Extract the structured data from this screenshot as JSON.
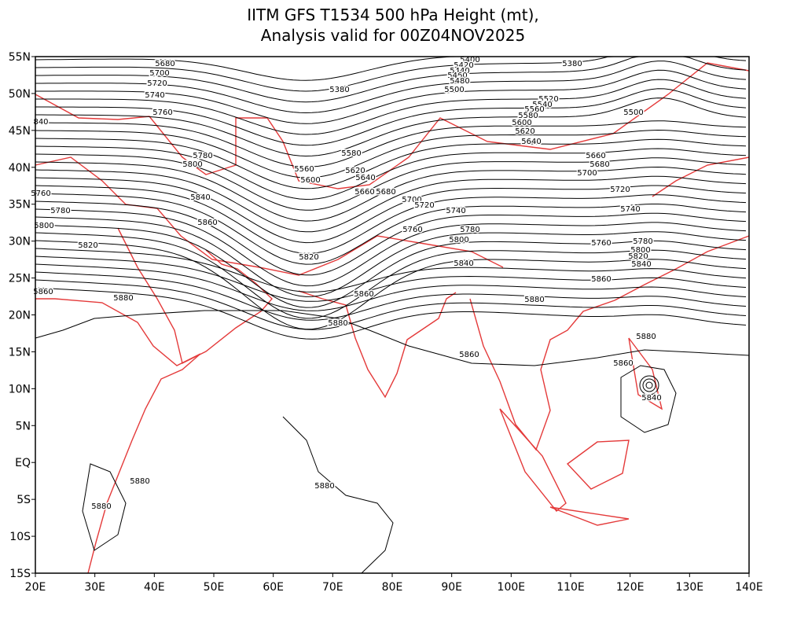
{
  "title": [
    "IITM GFS T1534 500 hPa Height (mt),",
    "Analysis valid for 00Z04NOV2025"
  ],
  "longitude_labels": [
    "20E",
    "30E",
    "40E",
    "50E",
    "60E",
    "70E",
    "80E",
    "90E",
    "100E",
    "110E",
    "120E",
    "130E",
    "140E"
  ],
  "latitude_labels": [
    "55N",
    "50N",
    "45N",
    "40N",
    "35N",
    "30N",
    "25N",
    "20N",
    "15N",
    "10N",
    "5N",
    "EQ",
    "5S",
    "10S",
    "15S"
  ],
  "contour_labels": [
    "5680",
    "5700",
    "5720",
    "5740",
    "5760",
    "840",
    "5780",
    "5800",
    "5840",
    "5860",
    "5760",
    "5780",
    "5800",
    "5820",
    "5860",
    "5880",
    "5880",
    "5860",
    "5820",
    "5380",
    "5580",
    "5560",
    "5600",
    "5620",
    "5640",
    "5660",
    "5680",
    "5700",
    "5720",
    "5740",
    "5760",
    "5780",
    "5800",
    "5840",
    "5400",
    "5420",
    "5440",
    "5460",
    "5480",
    "5500",
    "5380",
    "5520",
    "5540",
    "5560",
    "5580",
    "5600",
    "5620",
    "5640",
    "5500",
    "5660",
    "5680",
    "5700",
    "5720",
    "5740",
    "5760",
    "5780",
    "5800",
    "5820",
    "5840",
    "5860",
    "5880",
    "5860",
    "5880",
    "5860",
    "5840",
    "5880",
    "5880",
    "5880"
  ]
}
